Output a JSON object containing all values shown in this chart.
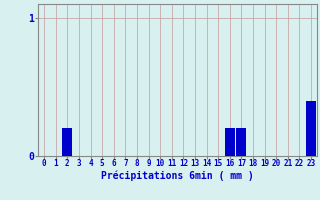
{
  "categories": [
    0,
    1,
    2,
    3,
    4,
    5,
    6,
    7,
    8,
    9,
    10,
    11,
    12,
    13,
    14,
    15,
    16,
    17,
    18,
    19,
    20,
    21,
    22,
    23
  ],
  "values": [
    0,
    0,
    0.2,
    0,
    0,
    0,
    0,
    0,
    0,
    0,
    0,
    0,
    0,
    0,
    0,
    0,
    0.2,
    0.2,
    0,
    0,
    0,
    0,
    0,
    0.4
  ],
  "bar_color": "#0000cc",
  "background_color": "#d8f0f0",
  "grid_color_v": "#c8a8a8",
  "xlabel": "Précipitations 6min ( mm )",
  "xlabel_color": "#0000cc",
  "tick_color": "#0000cc",
  "ylim": [
    0,
    1.1
  ],
  "yticks": [
    0,
    1
  ],
  "xlim": [
    -0.5,
    23.5
  ],
  "bar_width": 0.85
}
